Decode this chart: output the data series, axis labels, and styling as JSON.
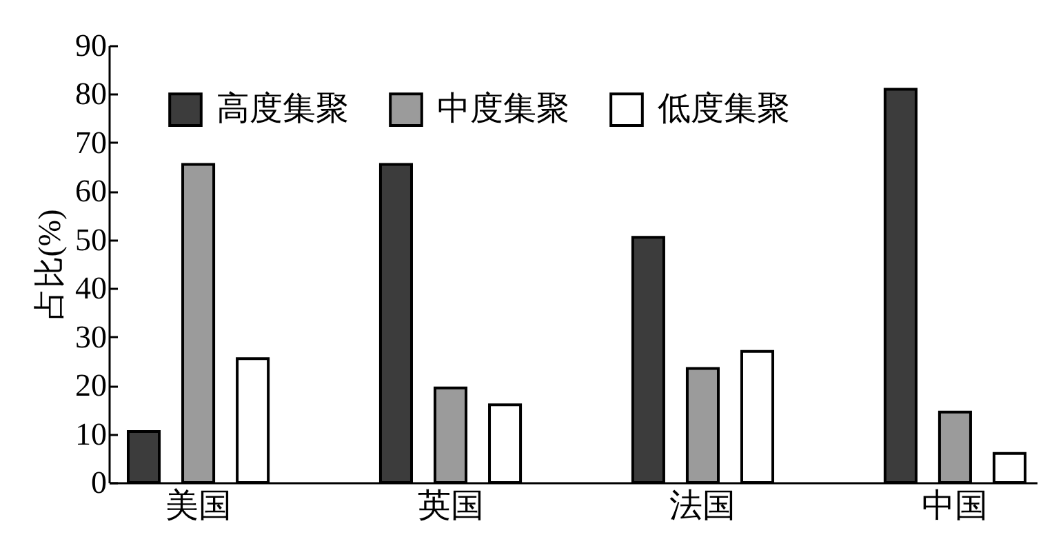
{
  "chart_data": {
    "type": "bar",
    "ylabel": "占比(%)",
    "categories": [
      "美国",
      "英国",
      "法国",
      "中国"
    ],
    "series": [
      {
        "name": "高度集聚",
        "color": "#3c3c3c",
        "values": [
          10.5,
          65.5,
          50.5,
          81
        ]
      },
      {
        "name": "中度集聚",
        "color": "#9b9b9b",
        "values": [
          65.5,
          19.5,
          23.5,
          14.5
        ]
      },
      {
        "name": "低度集聚",
        "color": "#ffffff",
        "values": [
          25.5,
          16,
          27,
          6
        ]
      }
    ],
    "ylim": [
      0,
      90
    ],
    "yticks": [
      0,
      10,
      20,
      30,
      40,
      50,
      60,
      70,
      80,
      90
    ],
    "legend": "top left"
  }
}
